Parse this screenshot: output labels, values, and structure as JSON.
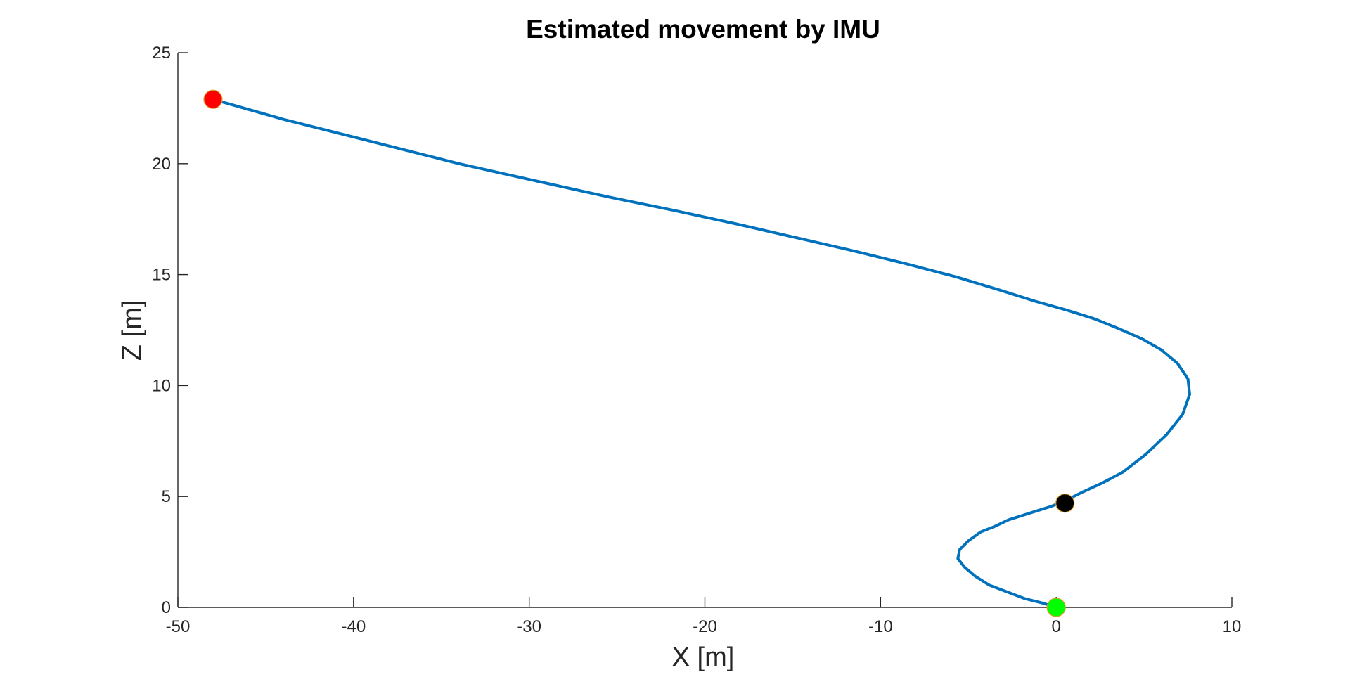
{
  "chart_data": {
    "type": "line",
    "title": "Estimated movement by IMU",
    "xlabel": "X [m]",
    "ylabel": "Z [m]",
    "xlim": [
      -50,
      10
    ],
    "ylim": [
      0,
      25
    ],
    "xticks": [
      -50,
      -40,
      -30,
      -20,
      -10,
      0,
      10
    ],
    "yticks": [
      0,
      5,
      10,
      15,
      20,
      25
    ],
    "xtick_labels": [
      "-50",
      "-40",
      "-30",
      "-20",
      "-10",
      "0",
      "10"
    ],
    "ytick_labels": [
      "0",
      "5",
      "10",
      "15",
      "20",
      "25"
    ],
    "grid": false,
    "series": [
      {
        "color": "#0072BD",
        "x": [
          0,
          -0.8,
          -1.8,
          -2.8,
          -3.8,
          -4.6,
          -5.2,
          -5.6,
          -5.5,
          -5.0,
          -4.3,
          -3.5,
          -2.7,
          -1.9,
          -1.1,
          -0.3,
          0.5,
          1.5,
          2.6,
          3.8,
          5.1,
          6.3,
          7.2,
          7.6,
          7.5,
          6.9,
          6.0,
          4.9,
          3.6,
          2.2,
          0.6,
          -1.2,
          -3.2,
          -5.7,
          -8.6,
          -11.7,
          -15.0,
          -18.3,
          -21.8,
          -25.5,
          -29.5,
          -34.0,
          -39.0,
          -44.0,
          -48.0
        ],
        "y": [
          0,
          0.2,
          0.4,
          0.7,
          1.0,
          1.4,
          1.8,
          2.2,
          2.6,
          3.0,
          3.4,
          3.65,
          3.95,
          4.15,
          4.35,
          4.55,
          4.8,
          5.2,
          5.6,
          6.1,
          6.9,
          7.8,
          8.7,
          9.6,
          10.3,
          11.0,
          11.6,
          12.1,
          12.55,
          13.0,
          13.4,
          13.8,
          14.3,
          14.9,
          15.5,
          16.1,
          16.7,
          17.3,
          17.9,
          18.5,
          19.2,
          20.0,
          21.0,
          22.0,
          22.9
        ]
      }
    ],
    "markers": [
      {
        "x": 0,
        "y": 0,
        "color": "#00FF00"
      },
      {
        "x": 0.5,
        "y": 4.7,
        "color": "#000000"
      },
      {
        "x": -48,
        "y": 22.9,
        "color": "#FF0000"
      }
    ]
  }
}
